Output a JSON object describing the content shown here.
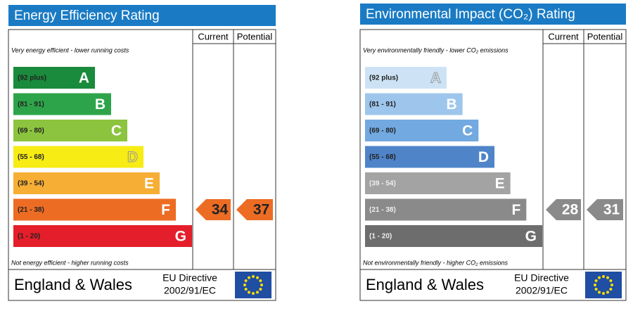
{
  "panels": [
    {
      "title": "Energy Efficiency Rating",
      "headers": [
        "Current",
        "Potential"
      ],
      "top_note": "Very energy efficient - lower running costs",
      "bottom_note": "Not energy efficient - higher running costs",
      "bands": [
        {
          "range": "(92 plus)",
          "letter": "A",
          "color": "#1a8a3c"
        },
        {
          "range": "(81 - 91)",
          "letter": "B",
          "color": "#2da44a"
        },
        {
          "range": "(69 - 80)",
          "letter": "C",
          "color": "#8cc43f"
        },
        {
          "range": "(55 - 68)",
          "letter": "D",
          "color": "#f7ec14"
        },
        {
          "range": "(39 - 54)",
          "letter": "E",
          "color": "#f6ae35"
        },
        {
          "range": "(21 - 38)",
          "letter": "F",
          "color": "#ed6c24"
        },
        {
          "range": "(1 - 20)",
          "letter": "G",
          "color": "#e41e2a"
        }
      ],
      "current": 34,
      "potential": 37,
      "footer": {
        "region": "England & Wales",
        "directive": [
          "EU Directive",
          "2002/91/EC"
        ]
      }
    },
    {
      "title": "Environmental Impact (CO₂) Rating",
      "headers": [
        "Current",
        "Potential"
      ],
      "top_note": "Very environmentally friendly - lower CO₂ emissions",
      "bottom_note": "Not environmentally friendly - higher CO₂ emissions",
      "bands": [
        {
          "range": "(92 plus)",
          "letter": "A",
          "color": "#cde3f5"
        },
        {
          "range": "(81 - 91)",
          "letter": "B",
          "color": "#9ec6ec"
        },
        {
          "range": "(69 - 80)",
          "letter": "C",
          "color": "#72a9e0"
        },
        {
          "range": "(55 - 68)",
          "letter": "D",
          "color": "#4f84c9"
        },
        {
          "range": "(39 - 54)",
          "letter": "E",
          "color": "#a3a3a3"
        },
        {
          "range": "(21 - 38)",
          "letter": "F",
          "color": "#8a8a8a"
        },
        {
          "range": "(1 - 20)",
          "letter": "G",
          "color": "#6d6d6d"
        }
      ],
      "current": 28,
      "potential": 31,
      "footer": {
        "region": "England & Wales",
        "directive": [
          "EU Directive",
          "2002/91/EC"
        ]
      }
    }
  ]
}
